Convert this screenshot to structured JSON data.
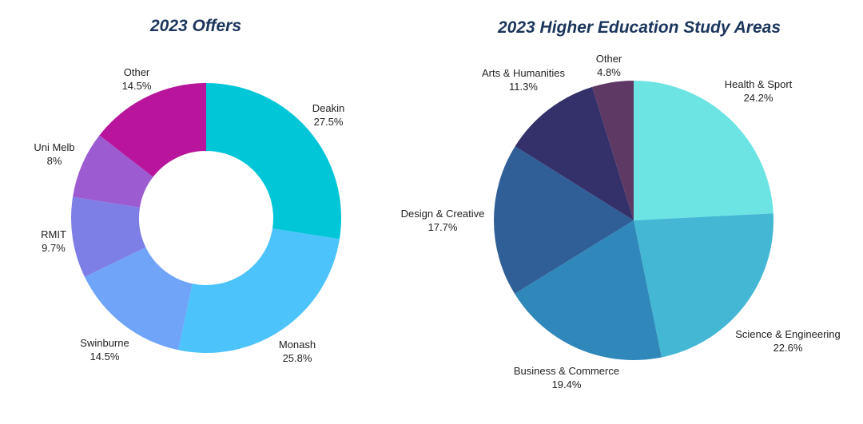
{
  "chart_data": [
    {
      "type": "pie",
      "variant": "donut",
      "title": "2023 Offers",
      "slices": [
        {
          "label": "Deakin",
          "value": 27.5,
          "display": "27.5%",
          "color": "#00c6d7"
        },
        {
          "label": "Monash",
          "value": 25.8,
          "display": "25.8%",
          "color": "#4cc3fb"
        },
        {
          "label": "Swinburne",
          "value": 14.5,
          "display": "14.5%",
          "color": "#6fa4f8"
        },
        {
          "label": "RMIT",
          "value": 9.7,
          "display": "9.7%",
          "color": "#7d7fe6"
        },
        {
          "label": "Uni Melb",
          "value": 8,
          "display": "8%",
          "color": "#9c5bd0"
        },
        {
          "label": "Other",
          "value": 14.5,
          "display": "14.5%",
          "color": "#b8149c"
        }
      ]
    },
    {
      "type": "pie",
      "title": "2023 Higher Education Study Areas",
      "slices": [
        {
          "label": "Health & Sport",
          "value": 24.2,
          "display": "24.2%",
          "color": "#6ce4e4"
        },
        {
          "label": "Science & Engineering",
          "value": 22.6,
          "display": "22.6%",
          "color": "#43b7d3"
        },
        {
          "label": "Business & Commerce",
          "value": 19.4,
          "display": "19.4%",
          "color": "#2f88b9"
        },
        {
          "label": "Design & Creative",
          "value": 17.7,
          "display": "17.7%",
          "color": "#305f98"
        },
        {
          "label": "Arts & Humanities",
          "value": 11.3,
          "display": "11.3%",
          "color": "#33306a"
        },
        {
          "label": "Other",
          "value": 4.8,
          "display": "4.8%",
          "color": "#5e3964"
        }
      ]
    }
  ]
}
